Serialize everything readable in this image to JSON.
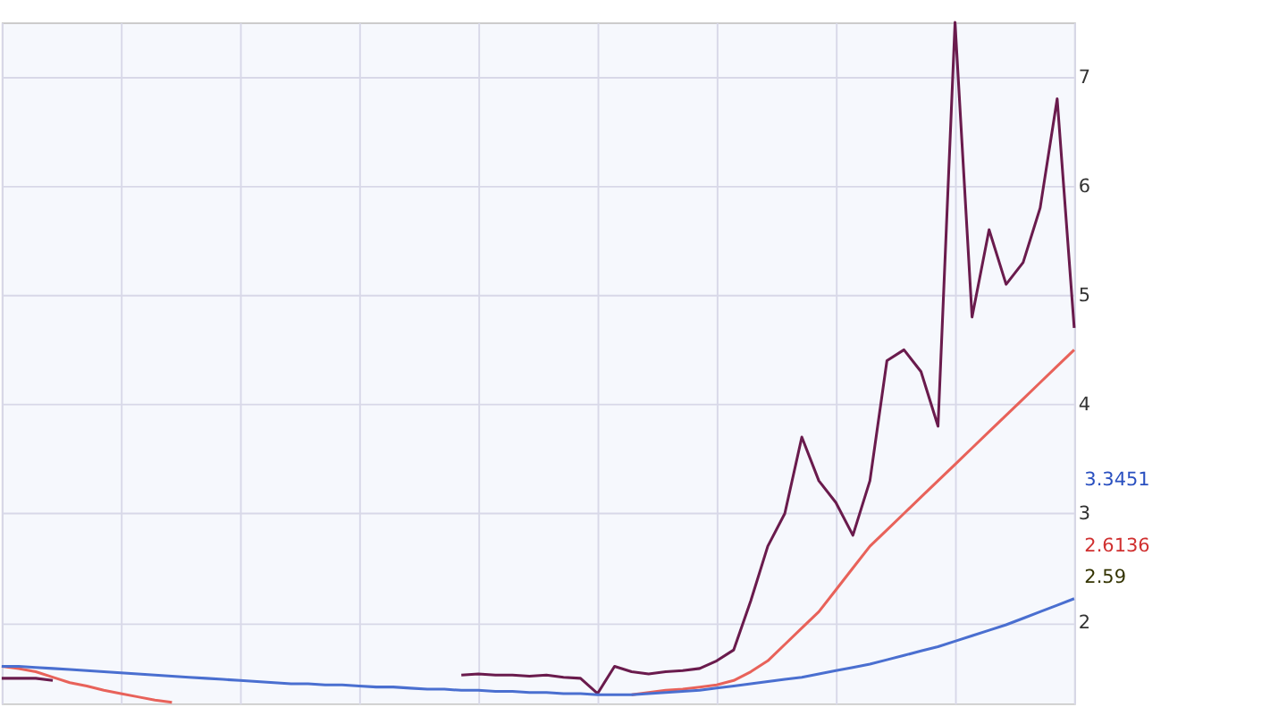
{
  "chart_data": {
    "type": "line",
    "categories": [
      null,
      null,
      null,
      null,
      null,
      null,
      null,
      null,
      null,
      null,
      null,
      null,
      null,
      null,
      null,
      null,
      null,
      null,
      null,
      null,
      null,
      null,
      null,
      null,
      null,
      null,
      null,
      null,
      null,
      null,
      null,
      null,
      null,
      null,
      null,
      null,
      null,
      null,
      null,
      null,
      null,
      null,
      null,
      null,
      null,
      null,
      null,
      null,
      null,
      null,
      null,
      null,
      null,
      null,
      null,
      null,
      null,
      null,
      null,
      null,
      null,
      null,
      null,
      null
    ],
    "series": [
      {
        "color": "#6a1b4d",
        "values": [
          1.49,
          1.49,
          1.49,
          1.47,
          null,
          null,
          null,
          null,
          null,
          null,
          null,
          null,
          null,
          null,
          null,
          null,
          null,
          null,
          null,
          null,
          null,
          null,
          null,
          null,
          null,
          null,
          null,
          1.52,
          1.53,
          1.52,
          1.52,
          1.51,
          1.52,
          1.5,
          1.49,
          1.35,
          1.6,
          1.55,
          1.53,
          1.55,
          1.56,
          1.58,
          1.65,
          1.75,
          2.2,
          2.7,
          3.0,
          3.7,
          3.3,
          3.1,
          2.8,
          3.3,
          4.4,
          4.5,
          4.3,
          3.8,
          7.5,
          4.8,
          5.6,
          5.1,
          5.3,
          5.8,
          6.8,
          4.7
        ]
      },
      {
        "color": "#e8625a",
        "values": [
          1.6,
          1.58,
          1.55,
          1.5,
          1.45,
          1.42,
          1.38,
          1.35,
          1.32,
          1.29,
          1.27,
          null,
          null,
          null,
          null,
          null,
          null,
          null,
          null,
          null,
          null,
          null,
          null,
          null,
          null,
          null,
          null,
          null,
          null,
          null,
          null,
          null,
          null,
          null,
          null,
          null,
          null,
          1.34,
          1.36,
          1.38,
          1.39,
          1.41,
          1.43,
          1.47,
          1.55,
          1.65,
          1.8,
          1.95,
          2.1,
          2.3,
          2.5,
          2.7,
          2.85,
          3.0,
          3.15,
          3.3,
          3.45,
          3.6,
          3.75,
          3.9,
          4.05,
          4.2,
          4.35,
          4.5
        ]
      },
      {
        "color": "#4a6fd0",
        "values": [
          1.6,
          1.6,
          1.59,
          1.58,
          1.57,
          1.56,
          1.55,
          1.54,
          1.53,
          1.52,
          1.51,
          1.5,
          1.49,
          1.48,
          1.47,
          1.46,
          1.45,
          1.44,
          1.44,
          1.43,
          1.43,
          1.42,
          1.41,
          1.41,
          1.4,
          1.39,
          1.39,
          1.38,
          1.38,
          1.37,
          1.37,
          1.36,
          1.36,
          1.35,
          1.35,
          1.34,
          1.34,
          1.34,
          1.35,
          1.36,
          1.37,
          1.38,
          1.4,
          1.42,
          1.44,
          1.46,
          1.48,
          1.5,
          1.53,
          1.56,
          1.59,
          1.62,
          1.66,
          1.7,
          1.74,
          1.78,
          1.83,
          1.88,
          1.93,
          1.98,
          2.04,
          2.1,
          2.16,
          2.22
        ]
      }
    ],
    "ylim": [
      1.26,
      7.5
    ],
    "yticks": [
      2,
      3,
      4,
      5,
      6,
      7
    ],
    "grid": true,
    "annotations": [
      "3.3451",
      "2.6136",
      "2.59"
    ]
  }
}
